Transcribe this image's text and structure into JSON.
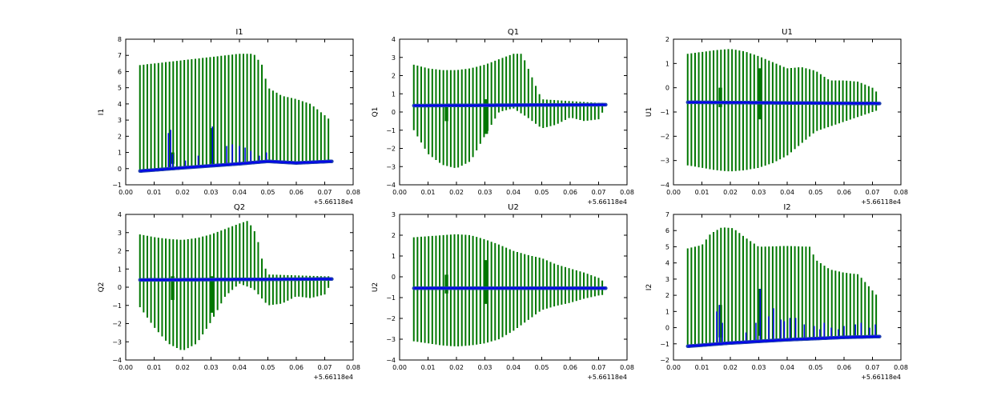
{
  "figure": {
    "offset_label": "+5.66118e4"
  },
  "colors": {
    "band": "#007700",
    "series": "#0000ee",
    "series_edge": "#1f3fb0",
    "axes": "#000000"
  },
  "chart_data": [
    {
      "type": "line",
      "title": "I1",
      "ylabel": "I1",
      "xlim": [
        0.0,
        0.08
      ],
      "ylim": [
        -1,
        8
      ],
      "xticks": [
        "0.00",
        "0.01",
        "0.02",
        "0.03",
        "0.04",
        "0.05",
        "0.06",
        "0.07",
        "0.08"
      ],
      "yticks": [
        "−1",
        "0",
        "1",
        "2",
        "3",
        "4",
        "5",
        "6",
        "7",
        "8"
      ],
      "ytick_values": [
        -1,
        0,
        1,
        2,
        3,
        4,
        5,
        6,
        7,
        8
      ],
      "band_x": [
        0.005,
        0.0725
      ],
      "band_top": [
        [
          0.005,
          6.4
        ],
        [
          0.01,
          6.5
        ],
        [
          0.015,
          6.6
        ],
        [
          0.02,
          6.7
        ],
        [
          0.03,
          6.9
        ],
        [
          0.04,
          7.1
        ],
        [
          0.045,
          7.1
        ],
        [
          0.048,
          6.4
        ],
        [
          0.05,
          5.0
        ],
        [
          0.055,
          4.5
        ],
        [
          0.06,
          4.3
        ],
        [
          0.065,
          4.0
        ],
        [
          0.07,
          3.3
        ],
        [
          0.0725,
          2.9
        ]
      ],
      "band_bottom": [
        [
          0.005,
          -0.1
        ],
        [
          0.02,
          0.1
        ],
        [
          0.04,
          0.3
        ],
        [
          0.05,
          0.4
        ],
        [
          0.0725,
          0.5
        ]
      ],
      "baseline": [
        [
          0.005,
          -0.15
        ],
        [
          0.02,
          0.05
        ],
        [
          0.04,
          0.3
        ],
        [
          0.05,
          0.45
        ],
        [
          0.06,
          0.35
        ],
        [
          0.0725,
          0.45
        ]
      ],
      "spikes": [
        [
          0.015,
          2.2
        ],
        [
          0.0158,
          2.4
        ],
        [
          0.0165,
          0.9
        ],
        [
          0.021,
          0.5
        ],
        [
          0.0255,
          0.8
        ],
        [
          0.0305,
          2.6
        ],
        [
          0.0355,
          1.4
        ],
        [
          0.0375,
          1.5
        ],
        [
          0.04,
          1.4
        ],
        [
          0.042,
          1.3
        ],
        [
          0.044,
          1.1
        ],
        [
          0.047,
          0.8
        ],
        [
          0.0495,
          1.0
        ]
      ],
      "anomalies": [
        [
          0.0165,
          0.3,
          1.0
        ],
        [
          0.0305,
          0.3,
          2.5
        ]
      ]
    },
    {
      "type": "line",
      "title": "Q1",
      "ylabel": "Q1",
      "xlim": [
        0.0,
        0.08
      ],
      "ylim": [
        -4,
        4
      ],
      "xticks": [
        "0.00",
        "0.01",
        "0.02",
        "0.03",
        "0.04",
        "0.05",
        "0.06",
        "0.07",
        "0.08"
      ],
      "yticks": [
        "−4",
        "−3",
        "−2",
        "−1",
        "0",
        "1",
        "2",
        "3",
        "4"
      ],
      "ytick_values": [
        -4,
        -3,
        -2,
        -1,
        0,
        1,
        2,
        3,
        4
      ],
      "band_x": [
        0.005,
        0.0725
      ],
      "band_top": [
        [
          0.005,
          2.6
        ],
        [
          0.01,
          2.4
        ],
        [
          0.015,
          2.3
        ],
        [
          0.02,
          2.3
        ],
        [
          0.025,
          2.4
        ],
        [
          0.03,
          2.6
        ],
        [
          0.035,
          2.9
        ],
        [
          0.04,
          3.2
        ],
        [
          0.043,
          3.2
        ],
        [
          0.048,
          1.4
        ],
        [
          0.05,
          0.7
        ],
        [
          0.06,
          0.6
        ],
        [
          0.07,
          0.5
        ],
        [
          0.0725,
          0.5
        ]
      ],
      "band_bottom": [
        [
          0.005,
          -1.0
        ],
        [
          0.01,
          -2.3
        ],
        [
          0.015,
          -2.9
        ],
        [
          0.02,
          -3.1
        ],
        [
          0.025,
          -2.7
        ],
        [
          0.03,
          -1.3
        ],
        [
          0.035,
          0.0
        ],
        [
          0.04,
          0.2
        ],
        [
          0.045,
          -0.3
        ],
        [
          0.05,
          -0.9
        ],
        [
          0.055,
          -0.7
        ],
        [
          0.06,
          -0.3
        ],
        [
          0.065,
          -0.5
        ],
        [
          0.07,
          -0.4
        ],
        [
          0.0725,
          0.3
        ]
      ],
      "baseline": [
        [
          0.005,
          0.35
        ],
        [
          0.0725,
          0.4
        ]
      ],
      "spikes": [],
      "anomalies": [
        [
          0.0165,
          -0.5,
          0.4
        ],
        [
          0.0305,
          -1.2,
          0.7
        ]
      ]
    },
    {
      "type": "line",
      "title": "U1",
      "ylabel": "U1",
      "xlim": [
        0.0,
        0.08
      ],
      "ylim": [
        -4,
        2
      ],
      "xticks": [
        "0.00",
        "0.01",
        "0.02",
        "0.03",
        "0.04",
        "0.05",
        "0.06",
        "0.07",
        "0.08"
      ],
      "yticks": [
        "−4",
        "−3",
        "−2",
        "−1",
        "0",
        "1",
        "2"
      ],
      "ytick_values": [
        -4,
        -3,
        -2,
        -1,
        0,
        1,
        2
      ],
      "band_x": [
        0.005,
        0.0725
      ],
      "band_top": [
        [
          0.005,
          1.4
        ],
        [
          0.015,
          1.55
        ],
        [
          0.02,
          1.6
        ],
        [
          0.025,
          1.5
        ],
        [
          0.03,
          1.3
        ],
        [
          0.035,
          1.05
        ],
        [
          0.04,
          0.8
        ],
        [
          0.045,
          0.85
        ],
        [
          0.05,
          0.7
        ],
        [
          0.055,
          0.3
        ],
        [
          0.06,
          0.3
        ],
        [
          0.065,
          0.25
        ],
        [
          0.07,
          0.0
        ],
        [
          0.0725,
          -0.3
        ]
      ],
      "band_bottom": [
        [
          0.005,
          -3.2
        ],
        [
          0.015,
          -3.4
        ],
        [
          0.02,
          -3.45
        ],
        [
          0.025,
          -3.4
        ],
        [
          0.03,
          -3.3
        ],
        [
          0.035,
          -3.1
        ],
        [
          0.04,
          -2.8
        ],
        [
          0.045,
          -2.3
        ],
        [
          0.05,
          -1.8
        ],
        [
          0.055,
          -1.6
        ],
        [
          0.06,
          -1.4
        ],
        [
          0.065,
          -1.2
        ],
        [
          0.07,
          -1.0
        ],
        [
          0.0725,
          -0.9
        ]
      ],
      "baseline": [
        [
          0.005,
          -0.6
        ],
        [
          0.0725,
          -0.65
        ]
      ],
      "spikes": [],
      "anomalies": [
        [
          0.0165,
          -0.8,
          0.0
        ],
        [
          0.0305,
          -1.3,
          0.8
        ]
      ]
    },
    {
      "type": "line",
      "title": "Q2",
      "ylabel": "Q2",
      "xlim": [
        0.0,
        0.08
      ],
      "ylim": [
        -4,
        4
      ],
      "xticks": [
        "0.00",
        "0.01",
        "0.02",
        "0.03",
        "0.04",
        "0.05",
        "0.06",
        "0.07",
        "0.08"
      ],
      "yticks": [
        "−4",
        "−3",
        "−2",
        "−1",
        "0",
        "1",
        "2",
        "3",
        "4"
      ],
      "ytick_values": [
        -4,
        -3,
        -2,
        -1,
        0,
        1,
        2,
        3,
        4
      ],
      "band_x": [
        0.005,
        0.0725
      ],
      "band_top": [
        [
          0.005,
          2.9
        ],
        [
          0.01,
          2.75
        ],
        [
          0.015,
          2.65
        ],
        [
          0.02,
          2.6
        ],
        [
          0.025,
          2.7
        ],
        [
          0.03,
          2.9
        ],
        [
          0.035,
          3.2
        ],
        [
          0.04,
          3.5
        ],
        [
          0.043,
          3.65
        ],
        [
          0.046,
          2.9
        ],
        [
          0.048,
          1.5
        ],
        [
          0.05,
          0.7
        ],
        [
          0.06,
          0.65
        ],
        [
          0.07,
          0.6
        ],
        [
          0.0725,
          0.6
        ]
      ],
      "band_bottom": [
        [
          0.005,
          -1.1
        ],
        [
          0.01,
          -2.2
        ],
        [
          0.015,
          -3.1
        ],
        [
          0.02,
          -3.5
        ],
        [
          0.025,
          -3.1
        ],
        [
          0.03,
          -1.9
        ],
        [
          0.035,
          -0.5
        ],
        [
          0.04,
          0.2
        ],
        [
          0.045,
          -0.1
        ],
        [
          0.05,
          -1.0
        ],
        [
          0.055,
          -0.9
        ],
        [
          0.06,
          -0.5
        ],
        [
          0.065,
          -0.6
        ],
        [
          0.07,
          -0.4
        ],
        [
          0.0725,
          0.3
        ]
      ],
      "baseline": [
        [
          0.005,
          0.4
        ],
        [
          0.0725,
          0.45
        ]
      ],
      "spikes": [],
      "anomalies": [
        [
          0.0165,
          -0.7,
          0.6
        ],
        [
          0.0305,
          -1.4,
          0.6
        ]
      ]
    },
    {
      "type": "line",
      "title": "U2",
      "ylabel": "U2",
      "xlim": [
        0.0,
        0.08
      ],
      "ylim": [
        -4,
        3
      ],
      "xticks": [
        "0.00",
        "0.01",
        "0.02",
        "0.03",
        "0.04",
        "0.05",
        "0.06",
        "0.07",
        "0.08"
      ],
      "yticks": [
        "−4",
        "−3",
        "−2",
        "−1",
        "0",
        "1",
        "2",
        "3"
      ],
      "ytick_values": [
        -4,
        -3,
        -2,
        -1,
        0,
        1,
        2,
        3
      ],
      "band_x": [
        0.005,
        0.0725
      ],
      "band_top": [
        [
          0.005,
          1.9
        ],
        [
          0.015,
          2.0
        ],
        [
          0.02,
          2.05
        ],
        [
          0.025,
          2.0
        ],
        [
          0.03,
          1.8
        ],
        [
          0.035,
          1.55
        ],
        [
          0.04,
          1.25
        ],
        [
          0.045,
          1.05
        ],
        [
          0.05,
          0.9
        ],
        [
          0.055,
          0.6
        ],
        [
          0.06,
          0.4
        ],
        [
          0.065,
          0.2
        ],
        [
          0.07,
          -0.05
        ],
        [
          0.0725,
          -0.3
        ]
      ],
      "band_bottom": [
        [
          0.005,
          -3.1
        ],
        [
          0.015,
          -3.3
        ],
        [
          0.02,
          -3.35
        ],
        [
          0.025,
          -3.3
        ],
        [
          0.03,
          -3.2
        ],
        [
          0.035,
          -3.0
        ],
        [
          0.04,
          -2.6
        ],
        [
          0.045,
          -2.1
        ],
        [
          0.05,
          -1.6
        ],
        [
          0.055,
          -1.4
        ],
        [
          0.06,
          -1.25
        ],
        [
          0.065,
          -1.05
        ],
        [
          0.07,
          -0.9
        ],
        [
          0.0725,
          -0.85
        ]
      ],
      "baseline": [
        [
          0.005,
          -0.55
        ],
        [
          0.0725,
          -0.55
        ]
      ],
      "spikes": [],
      "anomalies": [
        [
          0.0165,
          -0.8,
          0.1
        ],
        [
          0.0305,
          -1.3,
          0.8
        ]
      ]
    },
    {
      "type": "line",
      "title": "I2",
      "ylabel": "I2",
      "xlim": [
        0.0,
        0.08
      ],
      "ylim": [
        -2,
        7
      ],
      "xticks": [
        "0.00",
        "0.01",
        "0.02",
        "0.03",
        "0.04",
        "0.05",
        "0.06",
        "0.07",
        "0.08"
      ],
      "yticks": [
        "−2",
        "−1",
        "0",
        "1",
        "2",
        "3",
        "4",
        "5",
        "6",
        "7"
      ],
      "ytick_values": [
        -2,
        -1,
        0,
        1,
        2,
        3,
        4,
        5,
        6,
        7
      ],
      "band_x": [
        0.005,
        0.0725
      ],
      "band_top": [
        [
          0.005,
          4.9
        ],
        [
          0.01,
          5.1
        ],
        [
          0.013,
          5.8
        ],
        [
          0.017,
          6.2
        ],
        [
          0.021,
          6.15
        ],
        [
          0.025,
          5.6
        ],
        [
          0.03,
          5.0
        ],
        [
          0.04,
          5.05
        ],
        [
          0.048,
          5.0
        ],
        [
          0.05,
          4.2
        ],
        [
          0.055,
          3.6
        ],
        [
          0.06,
          3.4
        ],
        [
          0.065,
          3.3
        ],
        [
          0.07,
          2.3
        ],
        [
          0.0725,
          1.8
        ]
      ],
      "band_bottom": [
        [
          0.005,
          -1.1
        ],
        [
          0.02,
          -0.95
        ],
        [
          0.04,
          -0.8
        ],
        [
          0.06,
          -0.65
        ],
        [
          0.0725,
          -0.55
        ]
      ],
      "baseline": [
        [
          0.005,
          -1.15
        ],
        [
          0.02,
          -0.95
        ],
        [
          0.04,
          -0.75
        ],
        [
          0.06,
          -0.6
        ],
        [
          0.0725,
          -0.55
        ]
      ],
      "spikes": [
        [
          0.0152,
          1.0
        ],
        [
          0.0162,
          1.4
        ],
        [
          0.0172,
          0.3
        ],
        [
          0.0255,
          -0.3
        ],
        [
          0.029,
          0.3
        ],
        [
          0.0305,
          2.4
        ],
        [
          0.0335,
          0.7
        ],
        [
          0.0352,
          1.2
        ],
        [
          0.0378,
          0.5
        ],
        [
          0.039,
          0.4
        ],
        [
          0.041,
          0.6
        ],
        [
          0.043,
          0.6
        ],
        [
          0.046,
          0.2
        ],
        [
          0.0495,
          0.1
        ],
        [
          0.0515,
          -0.1
        ],
        [
          0.053,
          0.3
        ],
        [
          0.0555,
          0.0
        ],
        [
          0.058,
          -0.1
        ],
        [
          0.06,
          0.1
        ],
        [
          0.064,
          0.2
        ],
        [
          0.066,
          0.3
        ],
        [
          0.069,
          0.0
        ],
        [
          0.071,
          0.2
        ]
      ],
      "anomalies": [
        [
          0.0165,
          -0.6,
          1.4
        ],
        [
          0.0305,
          -0.5,
          2.4
        ]
      ]
    }
  ]
}
